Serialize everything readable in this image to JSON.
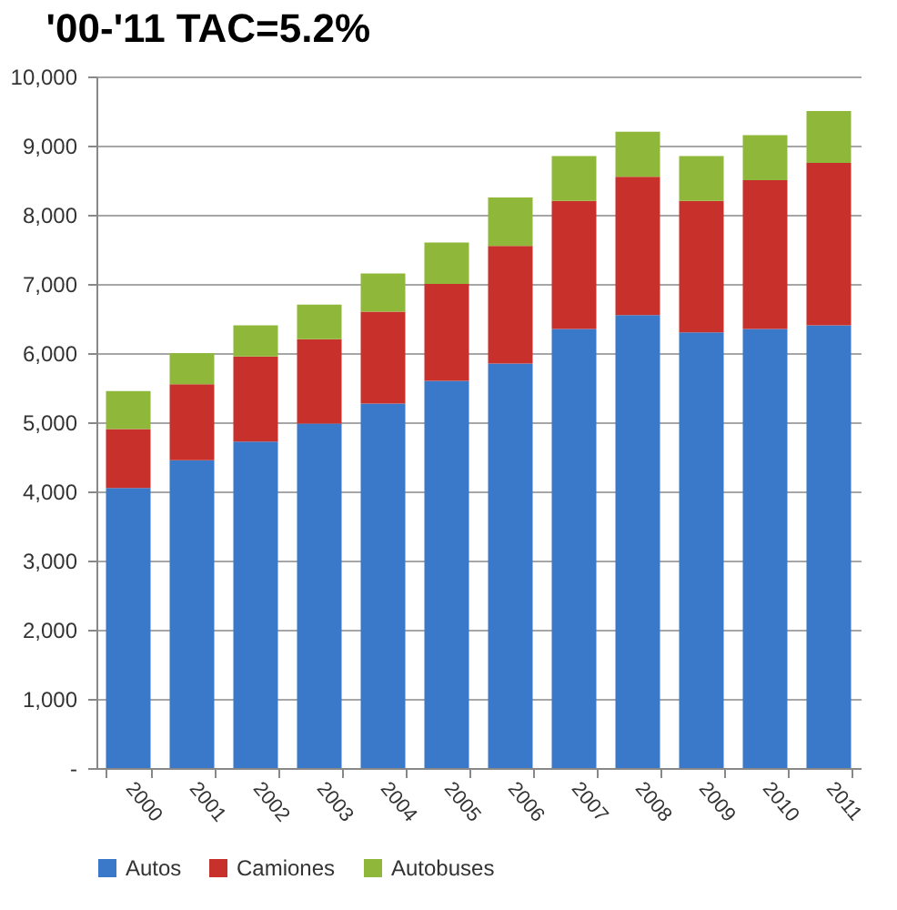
{
  "chart_data": {
    "type": "bar",
    "title": "'00-'11 TAC=5.2%",
    "stacked": true,
    "legend": "bottom",
    "grid": "y",
    "categories": [
      "2000",
      "2001",
      "2002",
      "2003",
      "2004",
      "2005",
      "2006",
      "2007",
      "2008",
      "2009",
      "2010",
      "2011"
    ],
    "ylim": [
      0,
      10000
    ],
    "yticks": [
      {
        "value": 0,
        "label": "-"
      },
      {
        "value": 1000,
        "label": "1,000"
      },
      {
        "value": 2000,
        "label": "2,000"
      },
      {
        "value": 3000,
        "label": "3,000"
      },
      {
        "value": 4000,
        "label": "4,000"
      },
      {
        "value": 5000,
        "label": "5,000"
      },
      {
        "value": 6000,
        "label": "6,000"
      },
      {
        "value": 7000,
        "label": "7,000"
      },
      {
        "value": 8000,
        "label": "8,000"
      },
      {
        "value": 9000,
        "label": "9,000"
      },
      {
        "value": 10000,
        "label": "10,000"
      }
    ],
    "series": [
      {
        "name": "Autos",
        "color": "#3a78c9",
        "values": [
          4050,
          4450,
          4720,
          4980,
          5270,
          5600,
          5850,
          6350,
          6550,
          6300,
          6350,
          6400
        ]
      },
      {
        "name": "Camiones",
        "color": "#c8302c",
        "values": [
          850,
          1100,
          1230,
          1220,
          1330,
          1400,
          1700,
          1850,
          2000,
          1900,
          2150,
          2350
        ]
      },
      {
        "name": "Autobuses",
        "color": "#8fb83a",
        "values": [
          550,
          450,
          450,
          500,
          550,
          600,
          700,
          650,
          650,
          650,
          650,
          750
        ]
      }
    ]
  }
}
